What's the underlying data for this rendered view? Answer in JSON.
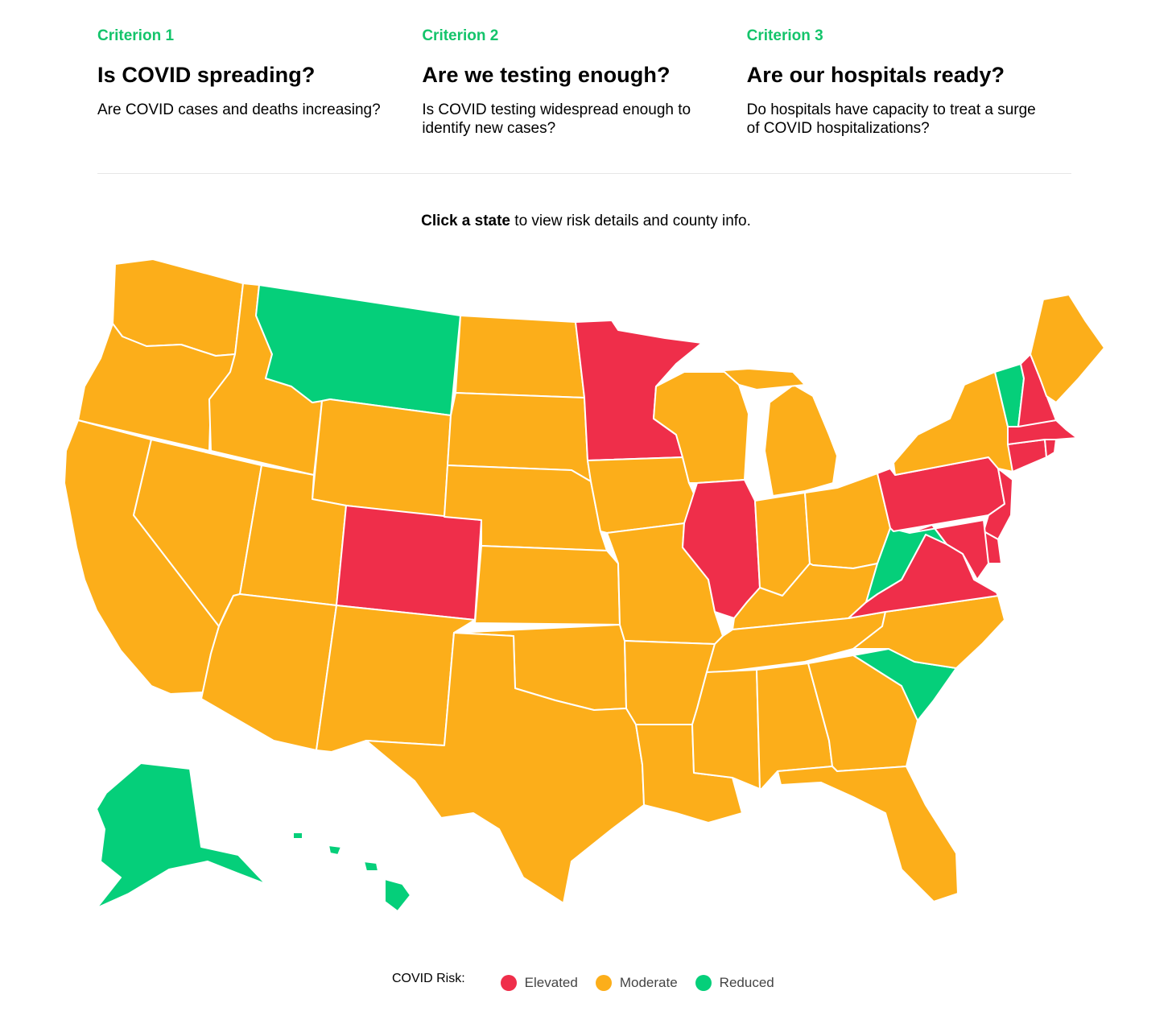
{
  "criteria": [
    {
      "kicker": "Criterion 1",
      "title": "Is COVID spreading?",
      "description": "Are COVID cases and deaths increasing?"
    },
    {
      "kicker": "Criterion 2",
      "title": "Are we testing enough?",
      "description": "Is COVID testing widespread enough to identify new cases?"
    },
    {
      "kicker": "Criterion 3",
      "title": "Are our hospitals ready?",
      "description": "Do hospitals have capacity to treat a surge of COVID hospitalizations?"
    }
  ],
  "instruction": {
    "bold": "Click a state",
    "rest": " to view risk details and county info."
  },
  "colors": {
    "elevated": "#ef2e4a",
    "moderate": "#fcae1a",
    "reduced": "#05cf7a",
    "accent": "#14c46b"
  },
  "legend": {
    "label": "COVID Risk:",
    "items": [
      {
        "label": "Elevated",
        "color": "#ef2e4a"
      },
      {
        "label": "Moderate",
        "color": "#fcae1a"
      },
      {
        "label": "Reduced",
        "color": "#05cf7a"
      }
    ]
  },
  "map": {
    "states": {
      "Washington": "moderate",
      "Oregon": "moderate",
      "California": "moderate",
      "Nevada": "moderate",
      "Idaho": "moderate",
      "Montana": "reduced",
      "Wyoming": "moderate",
      "Utah": "moderate",
      "Arizona": "moderate",
      "Colorado": "elevated",
      "New Mexico": "moderate",
      "North Dakota": "moderate",
      "South Dakota": "moderate",
      "Nebraska": "moderate",
      "Kansas": "moderate",
      "Oklahoma": "moderate",
      "Texas": "moderate",
      "Minnesota": "elevated",
      "Iowa": "moderate",
      "Missouri": "moderate",
      "Arkansas": "moderate",
      "Louisiana": "moderate",
      "Wisconsin": "moderate",
      "Illinois": "elevated",
      "Michigan": "moderate",
      "Indiana": "moderate",
      "Ohio": "moderate",
      "Kentucky": "moderate",
      "Tennessee": "moderate",
      "Mississippi": "moderate",
      "Alabama": "moderate",
      "Georgia": "moderate",
      "Florida": "moderate",
      "South Carolina": "reduced",
      "North Carolina": "moderate",
      "Virginia": "elevated",
      "West Virginia": "reduced",
      "Pennsylvania": "elevated",
      "New York": "moderate",
      "New Jersey": "elevated",
      "Delaware": "elevated",
      "Maryland": "elevated",
      "Connecticut": "elevated",
      "Rhode Island": "elevated",
      "Massachusetts": "elevated",
      "Vermont": "reduced",
      "New Hampshire": "elevated",
      "Maine": "moderate",
      "Alaska": "reduced",
      "Hawaii": "reduced"
    }
  }
}
